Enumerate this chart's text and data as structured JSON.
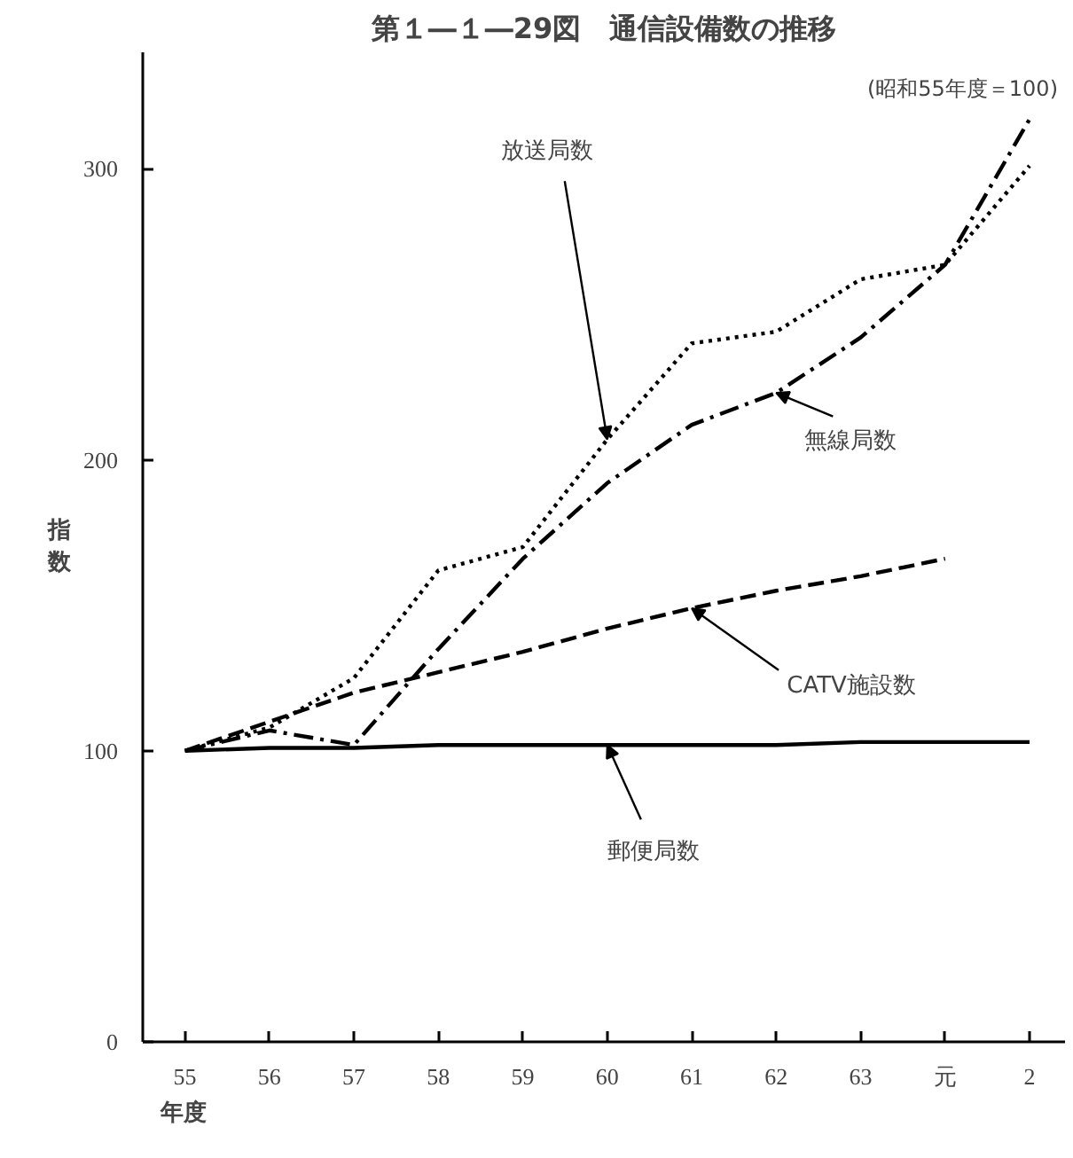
{
  "chart_data": {
    "type": "line",
    "title": "第１―１―29図　通信設備数の推移",
    "xlabel": "年度",
    "ylabel": "指数",
    "categories": [
      "55",
      "56",
      "57",
      "58",
      "59",
      "60",
      "61",
      "62",
      "63",
      "元",
      "2"
    ],
    "ylim": [
      0,
      340
    ],
    "yticks": [
      0,
      100,
      200,
      300
    ],
    "grid": false,
    "marker": "none",
    "series": [
      {
        "color": "#000000",
        "line_style": "dotted",
        "values": [
          100,
          108,
          125,
          162,
          170,
          207,
          240,
          244,
          262,
          267,
          301
        ]
      },
      {
        "color": "#000000",
        "line_style": "dashdot",
        "values": [
          100,
          107,
          102,
          135,
          166,
          192,
          212,
          223,
          242,
          267,
          317
        ]
      },
      {
        "color": "#000000",
        "line_style": "dashed",
        "values": [
          100,
          110,
          120,
          127,
          134,
          142,
          149,
          155,
          160,
          166,
          null
        ]
      },
      {
        "color": "#000000",
        "line_style": "solid",
        "values": [
          100,
          101,
          101,
          102,
          102,
          102,
          102,
          102,
          103,
          103,
          103
        ]
      }
    ],
    "annotations": [
      {
        "text": "放送局数",
        "x": "60",
        "y": 207
      },
      {
        "text": "無線局数",
        "x": "62",
        "y": 223
      },
      {
        "text": "CATV施設数",
        "x": "61",
        "y": 149
      },
      {
        "text": "郵便局数",
        "x": "60",
        "y": 102
      },
      "(昭和55年度＝100)"
    ]
  }
}
